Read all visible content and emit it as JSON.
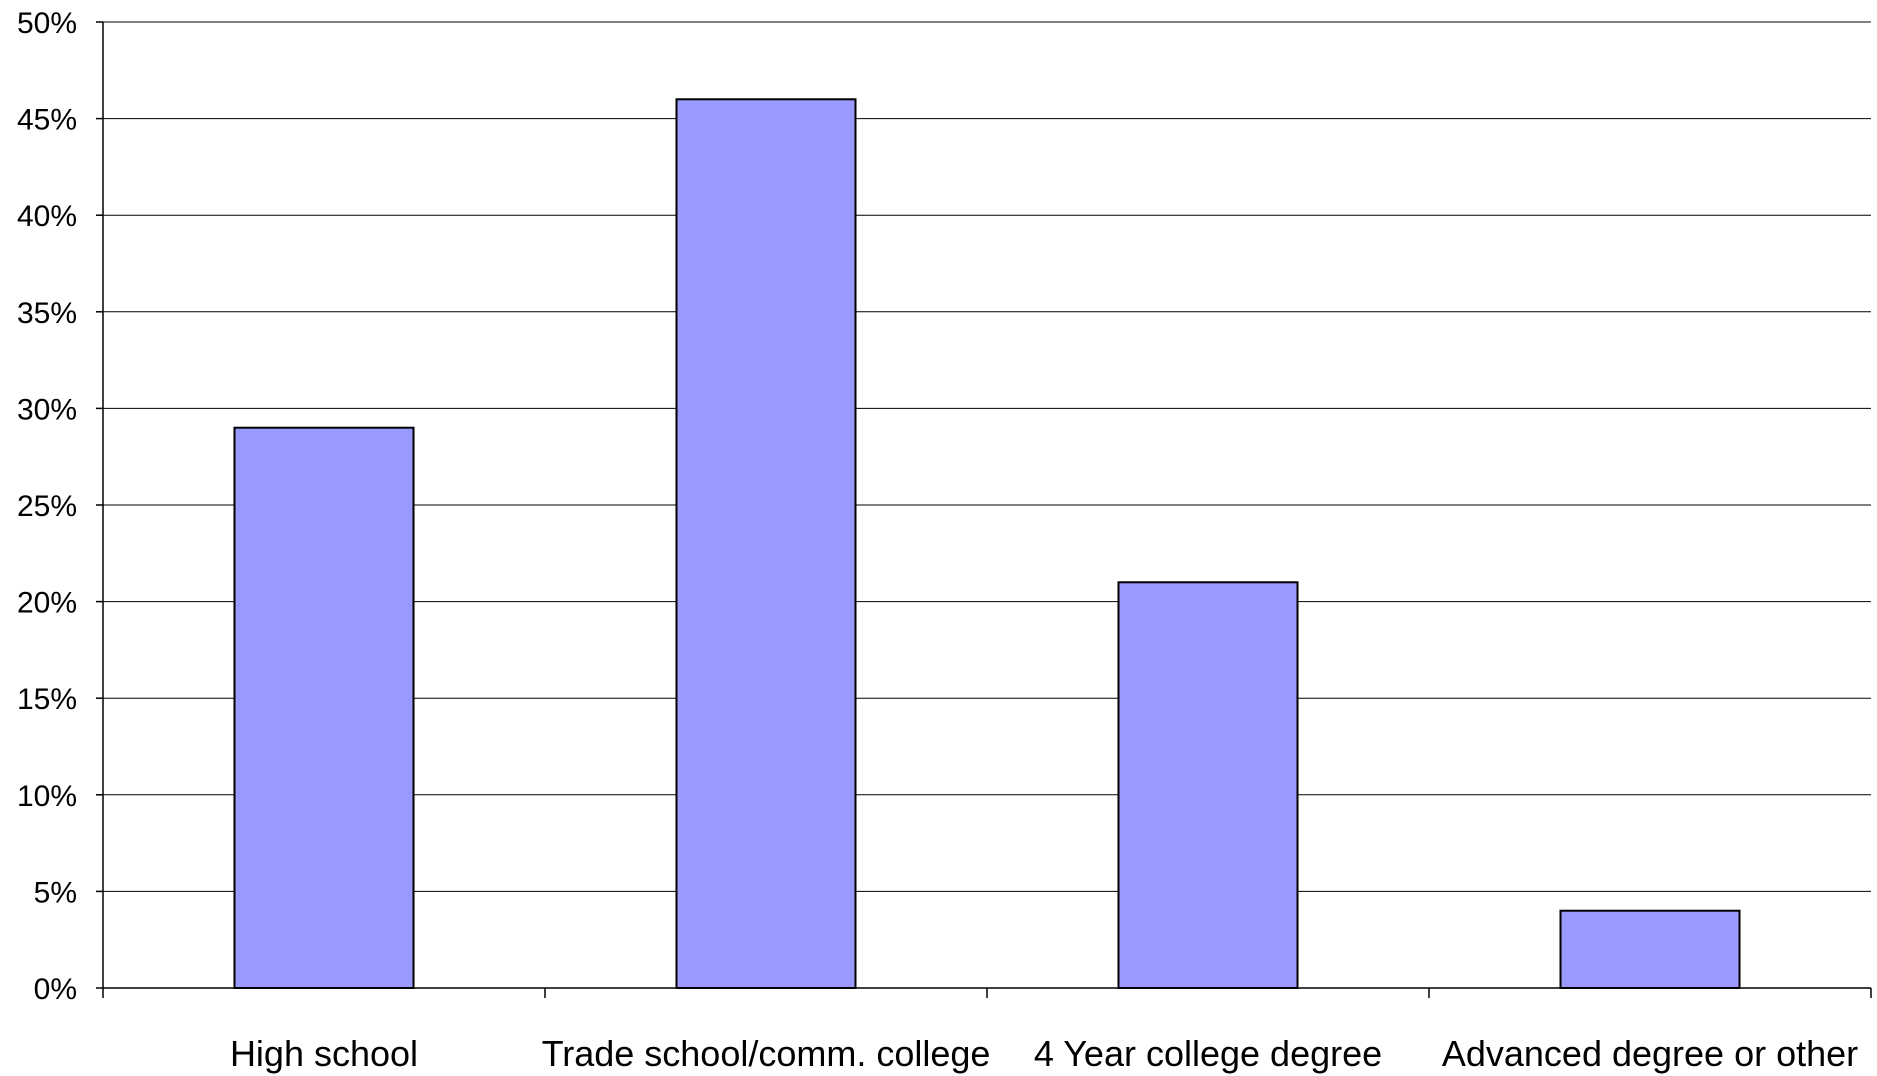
{
  "chart_data": {
    "type": "bar",
    "categories": [
      "High school",
      "Trade school/comm. college",
      "4 Year college degree",
      "Advanced degree or other"
    ],
    "values": [
      29,
      46,
      21,
      4
    ],
    "yticks": [
      "0%",
      "5%",
      "10%",
      "15%",
      "20%",
      "25%",
      "30%",
      "35%",
      "40%",
      "45%",
      "50%"
    ],
    "ylim": [
      0,
      50
    ],
    "grid": true,
    "colors": {
      "bar": "#9999ff",
      "bar_stroke": "#000000",
      "grid": "#000000"
    }
  }
}
